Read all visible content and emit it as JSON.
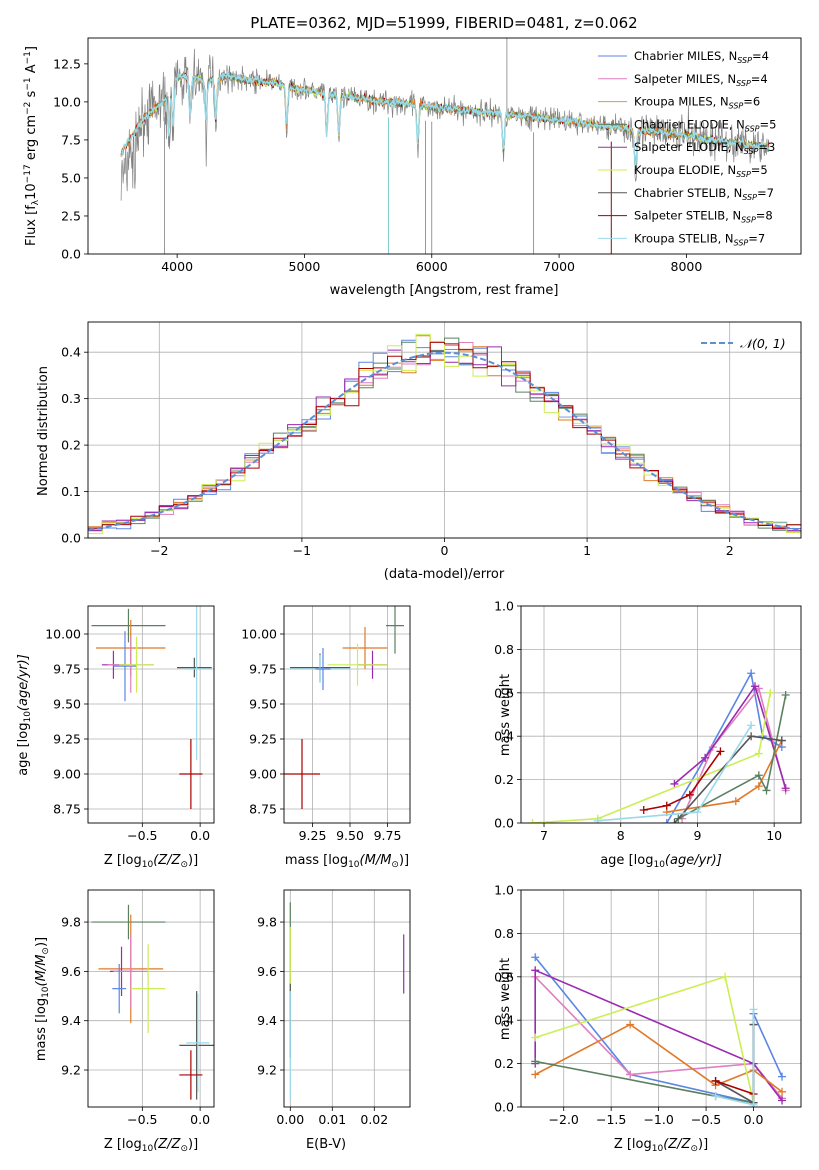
{
  "colors": {
    "Chabrier MILES": "#5b86e5",
    "Salpeter MILES": "#e07ec0",
    "Kroupa MILES": "#c8a24a",
    "Chabrier ELODIE": "#5a8060",
    "Salpeter ELODIE": "#9a2ab0",
    "Kroupa ELODIE": "#ccee55",
    "Chabrier STELIB": "#555555",
    "Salpeter STELIB": "#aa0000",
    "Kroupa STELIB": "#99d9ea",
    "orange": "#e07a2a",
    "data": "#808080",
    "model": "#7dd4d4",
    "gauss": "#5b8fd6"
  },
  "chart_data": [
    {
      "id": "spectrum",
      "type": "line",
      "title": "PLATE=0362, MJD=51999, FIBERID=0481, z=0.062",
      "xlabel": "wavelength [Angstrom, rest frame]",
      "ylabel": "Flux [f",
      "ylabel_sub": "λ",
      "ylabel_rest": "10",
      "ylabel_sup1": "−17",
      "ylabel_rest2": " erg cm",
      "ylabel_sup2": "−2",
      "ylabel_rest3": " s",
      "ylabel_sup3": "−1",
      "ylabel_rest4": " A",
      "ylabel_sup4": "−1",
      "ylabel_end": "]",
      "xlim": [
        3300,
        8900
      ],
      "ylim": [
        0,
        14.2
      ],
      "xticks": [
        "4000",
        "5000",
        "6000",
        "7000",
        "8000"
      ],
      "yticks": [
        "0.0",
        "2.5",
        "5.0",
        "7.5",
        "10.0",
        "12.5"
      ],
      "legend": [
        {
          "name": "Chabrier MILES",
          "sub": "SSP",
          "n": "4"
        },
        {
          "name": "Salpeter MILES",
          "sub": "SSP",
          "n": "4"
        },
        {
          "name": "Kroupa MILES",
          "sub": "SSP",
          "n": "6"
        },
        {
          "name": "Chabrier ELODIE",
          "sub": "SSP",
          "n": "5"
        },
        {
          "name": "Salpeter ELODIE",
          "sub": "SSP",
          "n": "3"
        },
        {
          "name": "Kroupa ELODIE",
          "sub": "SSP",
          "n": "5"
        },
        {
          "name": "Chabrier STELIB",
          "sub": "SSP",
          "n": "7"
        },
        {
          "name": "Salpeter STELIB",
          "sub": "SSP",
          "n": "8"
        },
        {
          "name": "Kroupa STELIB",
          "sub": "SSP",
          "n": "7"
        }
      ],
      "model_curve": {
        "x": [
          3560,
          3600,
          3650,
          3700,
          3750,
          3800,
          3850,
          3900,
          3950,
          4000,
          4100,
          4200,
          4300,
          4400,
          4500,
          4600,
          4700,
          4800,
          4900,
          5000,
          5200,
          5400,
          5600,
          5800,
          6000,
          6200,
          6400,
          6600,
          6800,
          7000,
          7200,
          7400,
          7600,
          7800,
          8000,
          8200,
          8400,
          8600,
          8700
        ],
        "y": [
          6.6,
          7.2,
          7.8,
          8.5,
          9.0,
          9.3,
          9.8,
          10.0,
          10.8,
          11.6,
          11.7,
          11.4,
          11.5,
          11.7,
          11.5,
          11.4,
          11.3,
          11.2,
          10.9,
          10.8,
          10.5,
          10.3,
          10.0,
          9.9,
          9.7,
          9.5,
          9.3,
          9.2,
          9.0,
          8.8,
          8.6,
          8.4,
          8.1,
          8.0,
          7.8,
          7.5,
          7.3,
          7.1,
          7.0
        ]
      },
      "absorption_lines": [
        3934,
        3968,
        4102,
        4227,
        4304,
        4861,
        5175,
        5270,
        5890,
        6563,
        7600
      ],
      "deep_spikes": [
        {
          "x": 3900,
          "y": 0.0
        },
        {
          "x": 5660,
          "y": 0.0
        },
        {
          "x": 5950,
          "y": 0.0
        },
        {
          "x": 6000,
          "y": 0.0
        },
        {
          "x": 6800,
          "y": 0.0
        },
        {
          "x": 7410,
          "y": 0.0
        }
      ],
      "emission_spike": {
        "x": 6590,
        "y": 14.2
      }
    },
    {
      "id": "residuals",
      "type": "step",
      "xlabel": "(data-model)/error",
      "ylabel": "Normed distribution",
      "xlim": [
        -2.5,
        2.5
      ],
      "ylim": [
        0,
        0.465
      ],
      "xticks": [
        "−2",
        "−1",
        "0",
        "1",
        "2"
      ],
      "yticks": [
        "0.0",
        "0.1",
        "0.2",
        "0.3",
        "0.4"
      ],
      "legend": "N(0,1)",
      "bin_width": 0.1
    },
    {
      "id": "age_vs_Z",
      "type": "errorbar",
      "xlabel": "Z [log",
      "xlabel_sub": "10",
      "xlabel_rest": "(Z/Z",
      "xlabel_sub2": "⊙",
      "xlabel_end": ")]",
      "ylabel": "age  [log",
      "ylabel_sub": "10",
      "ylabel_rest": "(age/yr)]",
      "xlim": [
        -0.97,
        0.12
      ],
      "ylim": [
        8.65,
        10.2
      ],
      "xticks": [
        "−0.5",
        "0.0"
      ],
      "yticks": [
        "8.75",
        "9.00",
        "9.25",
        "9.50",
        "9.75",
        "10.00"
      ],
      "points": [
        {
          "key": "Chabrier ELODIE",
          "x": -0.62,
          "y": 10.06,
          "xerr": 0.32,
          "yerr": 0.12
        },
        {
          "key": "orange",
          "x": -0.6,
          "y": 9.9,
          "xerr": 0.3,
          "yerr": 0.2
        },
        {
          "key": "Salpeter ELODIE",
          "x": -0.75,
          "y": 9.78,
          "xerr": 0.1,
          "yerr": 0.1
        },
        {
          "key": "Chabrier MILES",
          "x": -0.65,
          "y": 9.77,
          "xerr": 0.1,
          "yerr": 0.25
        },
        {
          "key": "Salpeter MILES",
          "x": -0.6,
          "y": 9.78,
          "xerr": 0.2,
          "yerr": 0.2
        },
        {
          "key": "Kroupa ELODIE",
          "x": -0.55,
          "y": 9.78,
          "xerr": 0.15,
          "yerr": 0.2
        },
        {
          "key": "Chabrier STELIB",
          "x": -0.05,
          "y": 9.76,
          "xerr": 0.15,
          "yerr": 0.07
        },
        {
          "key": "Kroupa STELIB",
          "x": -0.03,
          "y": 9.75,
          "xerr": 0.12,
          "yerr": 0.65
        },
        {
          "key": "Salpeter STELIB",
          "x": -0.08,
          "y": 9.0,
          "xerr": 0.1,
          "yerr": 0.25
        }
      ]
    },
    {
      "id": "age_vs_mass",
      "type": "errorbar",
      "xlabel": "mass [log",
      "xlabel_sub": "10",
      "xlabel_rest": "(M/M",
      "xlabel_sub2": "⊙",
      "xlabel_end": ")]",
      "ylabel": "",
      "xlim": [
        9.06,
        9.9
      ],
      "ylim": [
        8.65,
        10.2
      ],
      "xticks": [
        "9.25",
        "9.50",
        "9.75"
      ],
      "yticks": [
        "8.75",
        "9.00",
        "9.25",
        "9.50",
        "9.75",
        "10.00"
      ],
      "points": [
        {
          "key": "Chabrier ELODIE",
          "x": 9.8,
          "y": 10.06,
          "xerr": 0.06,
          "yerr": 0.2
        },
        {
          "key": "orange",
          "x": 9.6,
          "y": 9.9,
          "xerr": 0.15,
          "yerr": 0.15
        },
        {
          "key": "Salpeter ELODIE",
          "x": 9.65,
          "y": 9.78,
          "xerr": 0.1,
          "yerr": 0.1
        },
        {
          "key": "Kroupa ELODIE",
          "x": 9.55,
          "y": 9.78,
          "xerr": 0.2,
          "yerr": 0.15
        },
        {
          "key": "Chabrier STELIB",
          "x": 9.3,
          "y": 9.76,
          "xerr": 0.2,
          "yerr": 0.1
        },
        {
          "key": "Kroupa STELIB",
          "x": 9.3,
          "y": 9.75,
          "xerr": 0.2,
          "yerr": 0.1
        },
        {
          "key": "Chabrier MILES",
          "x": 9.32,
          "y": 9.75,
          "xerr": 0.05,
          "yerr": 0.15
        },
        {
          "key": "Salpeter STELIB",
          "x": 9.18,
          "y": 9.0,
          "xerr": 0.12,
          "yerr": 0.25
        }
      ]
    },
    {
      "id": "weight_vs_age",
      "type": "line",
      "xlabel": "age  [log",
      "xlabel_sub": "10",
      "xlabel_rest": "(age/yr)]",
      "ylabel": "mass weight",
      "xlim": [
        6.7,
        10.35
      ],
      "ylim": [
        0,
        1.0
      ],
      "xticks": [
        "7",
        "8",
        "9",
        "10"
      ],
      "yticks": [
        "0.0",
        "0.2",
        "0.4",
        "0.6",
        "0.8",
        "1.0"
      ],
      "series": [
        {
          "key": "Chabrier MILES",
          "x": [
            8.6,
            9.1,
            9.7,
            9.85,
            10.1
          ],
          "y": [
            0.0,
            0.3,
            0.69,
            0.4,
            0.35
          ]
        },
        {
          "key": "Salpeter MILES",
          "x": [
            8.8,
            9.2,
            9.8,
            10.15
          ],
          "y": [
            0.02,
            0.35,
            0.62,
            0.15
          ]
        },
        {
          "key": "Salpeter ELODIE",
          "x": [
            8.7,
            9.1,
            9.75,
            10.15
          ],
          "y": [
            0.18,
            0.3,
            0.63,
            0.16
          ]
        },
        {
          "key": "orange",
          "x": [
            8.6,
            9.5,
            9.8,
            10.1
          ],
          "y": [
            0.05,
            0.1,
            0.17,
            0.38
          ]
        },
        {
          "key": "Chabrier ELODIE",
          "x": [
            8.75,
            9.8,
            9.9,
            10.15
          ],
          "y": [
            0.02,
            0.22,
            0.15,
            0.59
          ]
        },
        {
          "key": "Kroupa ELODIE",
          "x": [
            6.85,
            7.7,
            9.8,
            9.95
          ],
          "y": [
            0.0,
            0.02,
            0.32,
            0.6
          ]
        },
        {
          "key": "Salpeter STELIB",
          "x": [
            8.3,
            8.6,
            8.9,
            9.3
          ],
          "y": [
            0.06,
            0.08,
            0.13,
            0.33
          ]
        },
        {
          "key": "Chabrier STELIB",
          "x": [
            8.7,
            9.7,
            10.1
          ],
          "y": [
            0.0,
            0.4,
            0.38
          ]
        },
        {
          "key": "Kroupa STELIB",
          "x": [
            7.7,
            9.0,
            9.7
          ],
          "y": [
            0.01,
            0.05,
            0.45
          ]
        }
      ]
    },
    {
      "id": "mass_vs_Z",
      "type": "errorbar",
      "xlabel": "Z [log",
      "xlabel_sub": "10",
      "xlabel_rest": "(Z/Z",
      "xlabel_sub2": "⊙",
      "xlabel_end": ")]",
      "ylabel": "mass [log",
      "ylabel_sub": "10",
      "ylabel_rest": "(M/M",
      "ylabel_sub2": "⊙",
      "ylabel_end": ")]",
      "xlim": [
        -0.97,
        0.12
      ],
      "ylim": [
        9.05,
        9.93
      ],
      "xticks": [
        "−0.5",
        "0.0"
      ],
      "yticks": [
        "9.2",
        "9.4",
        "9.6",
        "9.8"
      ],
      "points": [
        {
          "key": "Chabrier ELODIE",
          "x": -0.62,
          "y": 9.8,
          "xerr": 0.32,
          "yerr": 0.07
        },
        {
          "key": "orange",
          "x": -0.6,
          "y": 9.61,
          "xerr": 0.28,
          "yerr": 0.22
        },
        {
          "key": "Salpeter ELODIE",
          "x": -0.68,
          "y": 9.6,
          "xerr": 0.1,
          "yerr": 0.1
        },
        {
          "key": "Salpeter MILES",
          "x": -0.6,
          "y": 9.6,
          "xerr": 0.15,
          "yerr": 0.15
        },
        {
          "key": "Kroupa ELODIE",
          "x": -0.45,
          "y": 9.53,
          "xerr": 0.15,
          "yerr": 0.18
        },
        {
          "key": "Chabrier MILES",
          "x": -0.7,
          "y": 9.53,
          "xerr": 0.06,
          "yerr": 0.1
        },
        {
          "key": "Chabrier STELIB",
          "x": -0.03,
          "y": 9.3,
          "xerr": 0.15,
          "yerr": 0.22
        },
        {
          "key": "Kroupa STELIB",
          "x": -0.02,
          "y": 9.31,
          "xerr": 0.1,
          "yerr": 0.2
        },
        {
          "key": "Salpeter STELIB",
          "x": -0.08,
          "y": 9.18,
          "xerr": 0.1,
          "yerr": 0.1
        }
      ]
    },
    {
      "id": "mass_vs_ebv",
      "type": "errorbar",
      "xlabel": "E(B-V)",
      "ylabel": "",
      "xlim": [
        -0.0015,
        0.0285
      ],
      "ylim": [
        9.05,
        9.93
      ],
      "xticks": [
        "0.00",
        "0.01",
        "0.02"
      ],
      "yticks": [
        "9.2",
        "9.4",
        "9.6",
        "9.8"
      ],
      "points": [
        {
          "key": "Chabrier ELODIE",
          "x": 0.0,
          "y": 9.7,
          "xerr": 0.0,
          "yerr": 0.18
        },
        {
          "key": "Kroupa ELODIE",
          "x": 0.0,
          "y": 9.6,
          "xerr": 0.0,
          "yerr": 0.18
        },
        {
          "key": "Chabrier STELIB",
          "x": 0.0,
          "y": 9.4,
          "xerr": 0.0,
          "yerr": 0.15
        },
        {
          "key": "Kroupa STELIB",
          "x": 0.0,
          "y": 9.3,
          "xerr": 0.0,
          "yerr": 0.22
        },
        {
          "key": "Salpeter ELODIE",
          "x": 0.027,
          "y": 9.63,
          "xerr": 0.0,
          "yerr": 0.12
        }
      ]
    },
    {
      "id": "weight_vs_Z",
      "type": "line",
      "xlabel": "Z [log",
      "xlabel_sub": "10",
      "xlabel_rest": "(Z/Z",
      "xlabel_sub2": "⊙",
      "xlabel_end": ")]",
      "ylabel": "mass weight",
      "xlim": [
        -2.45,
        0.5
      ],
      "ylim": [
        0,
        1.0
      ],
      "xticks": [
        "−2.0",
        "−1.5",
        "−1.0",
        "−0.5",
        "0.0"
      ],
      "yticks": [
        "0.0",
        "0.2",
        "0.4",
        "0.6",
        "0.8",
        "1.0"
      ],
      "series": [
        {
          "key": "Chabrier MILES",
          "x": [
            -2.3,
            -1.3,
            0.0,
            0.0,
            0.3
          ],
          "y": [
            0.69,
            0.15,
            0.02,
            0.43,
            0.14
          ]
        },
        {
          "key": "Salpeter MILES",
          "x": [
            -2.3,
            -1.3,
            0.0,
            0.3
          ],
          "y": [
            0.6,
            0.15,
            0.2,
            0.04
          ]
        },
        {
          "key": "Salpeter ELODIE",
          "x": [
            -2.3,
            -2.3,
            0.0,
            0.3
          ],
          "y": [
            0.2,
            0.63,
            0.2,
            0.03
          ]
        },
        {
          "key": "orange",
          "x": [
            -2.3,
            -1.3,
            -0.4,
            0.0,
            0.3
          ],
          "y": [
            0.15,
            0.38,
            0.1,
            0.17,
            0.07
          ]
        },
        {
          "key": "Kroupa ELODIE",
          "x": [
            -2.3,
            -0.3,
            0.0
          ],
          "y": [
            0.32,
            0.6,
            0.02
          ]
        },
        {
          "key": "Chabrier ELODIE",
          "x": [
            -2.3,
            -0.4,
            0.0,
            0.0
          ],
          "y": [
            0.21,
            0.05,
            0.02,
            0.38
          ]
        },
        {
          "key": "Chabrier STELIB",
          "x": [
            -0.4,
            0.0,
            0.0
          ],
          "y": [
            0.12,
            0.02,
            0.38
          ]
        },
        {
          "key": "Salpeter STELIB",
          "x": [
            -0.4,
            0.0
          ],
          "y": [
            0.12,
            0.06
          ]
        },
        {
          "key": "Kroupa STELIB",
          "x": [
            -0.4,
            0.0,
            0.0
          ],
          "y": [
            0.05,
            0.01,
            0.45
          ]
        }
      ]
    }
  ]
}
